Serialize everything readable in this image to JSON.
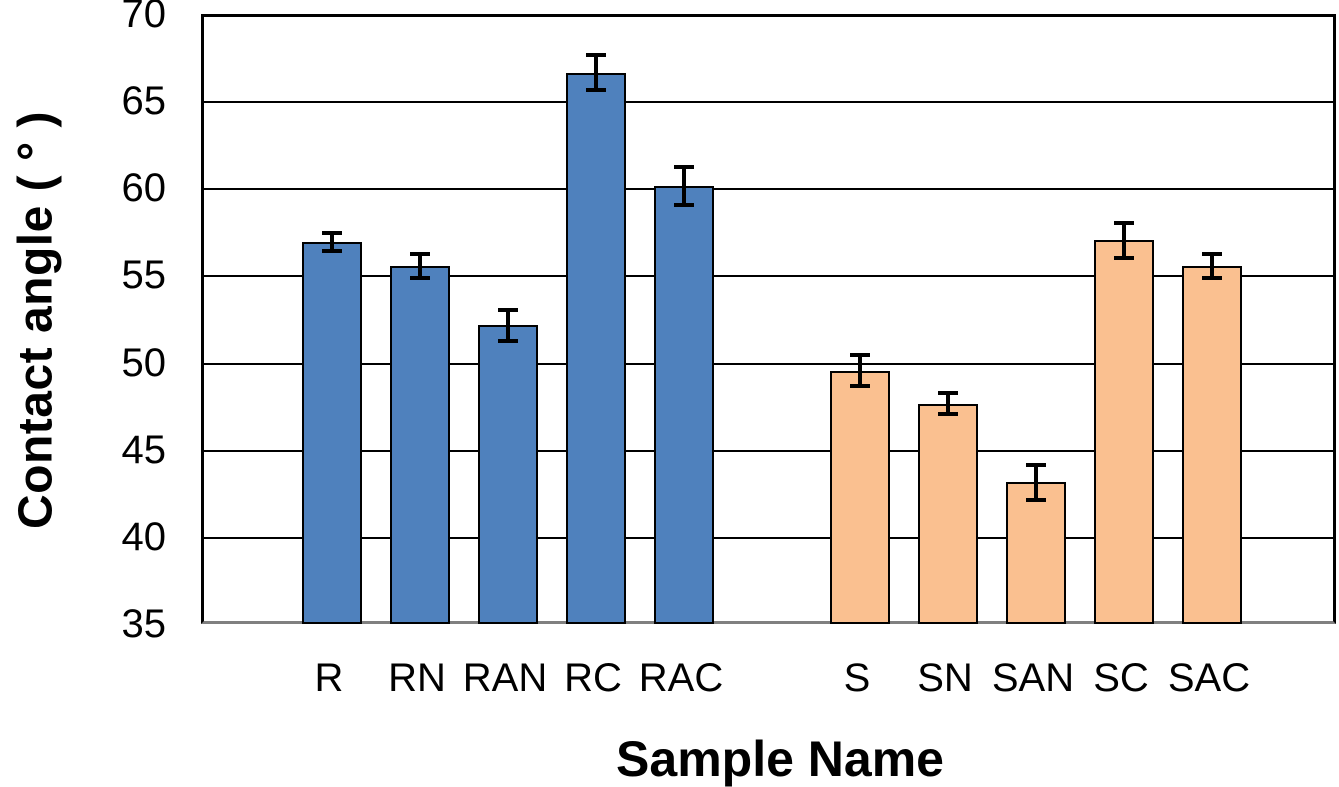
{
  "chart_data": {
    "type": "bar",
    "title": "",
    "xlabel": "Sample Name",
    "ylabel": "Contact angle ( ° )",
    "ylim": [
      35,
      70
    ],
    "ytick_interval": 5,
    "yticks": [
      70,
      65,
      60,
      55,
      50,
      45,
      40,
      35
    ],
    "grid": true,
    "legend_position": "none",
    "error_bars": true,
    "group_break_after_index": 4,
    "categories": [
      "R",
      "RN",
      "RAN",
      "RC",
      "RAC",
      "S",
      "SN",
      "SAN",
      "SC",
      "SAC"
    ],
    "series": [
      {
        "name": "Contact angle",
        "values": [
          57.1,
          55.7,
          52.3,
          66.8,
          60.3,
          49.7,
          47.8,
          43.3,
          57.2,
          55.7
        ],
        "errors": [
          0.5,
          0.7,
          0.9,
          1.0,
          1.1,
          0.9,
          0.6,
          1.0,
          1.0,
          0.7
        ],
        "bar_groups": [
          "R_group",
          "R_group",
          "R_group",
          "R_group",
          "R_group",
          "S_group",
          "S_group",
          "S_group",
          "S_group",
          "S_group"
        ]
      }
    ],
    "colors": {
      "R_group": "#4F81BD",
      "S_group": "#FAC090",
      "bar_border": "#000000",
      "gridline": "#000000",
      "plot_border": "#000000",
      "x_axis_line": "#808080",
      "error_bar": "#000000",
      "text": "#000000"
    }
  }
}
